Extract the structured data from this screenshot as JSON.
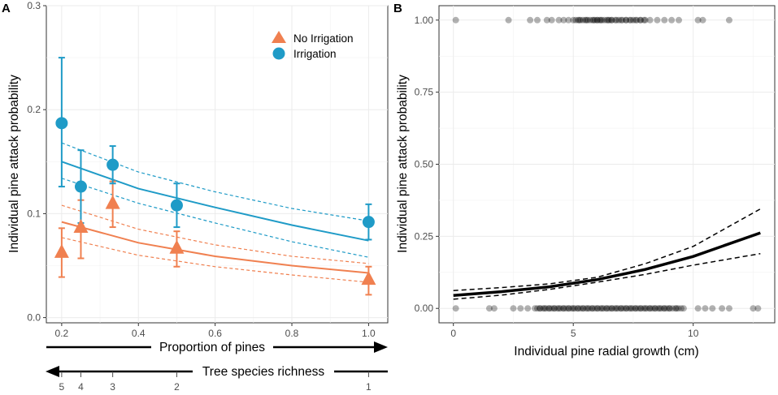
{
  "chart_data": [
    {
      "panel": "A",
      "type": "scatter",
      "ylabel": "Individual pine attack probability",
      "ylim": [
        -0.005,
        0.3
      ],
      "xlim": [
        0.16,
        1.05
      ],
      "x_ticks": [
        0.2,
        0.4,
        0.6,
        0.8,
        1.0
      ],
      "x_tick_labels": [
        "0.2",
        "0.4",
        "0.6",
        "0.8",
        "1.0"
      ],
      "y_ticks": [
        0.0,
        0.1,
        0.2,
        0.3
      ],
      "y_tick_labels": [
        "0.0",
        "0.1",
        "0.2",
        "0.3"
      ],
      "grid": true,
      "legend_position": "top-right",
      "legend": [
        {
          "name": "No Irrigation",
          "marker": "triangle",
          "color": "#f08050"
        },
        {
          "name": "Irrigation",
          "marker": "circle",
          "color": "#1f9bc7"
        }
      ],
      "series": [
        {
          "name": "No Irrigation",
          "color": "#f08050",
          "points": [
            {
              "x": 0.2,
              "y": 0.063,
              "lo": 0.039,
              "hi": 0.086
            },
            {
              "x": 0.25,
              "y": 0.087,
              "lo": 0.057,
              "hi": 0.113
            },
            {
              "x": 0.333,
              "y": 0.11,
              "lo": 0.087,
              "hi": 0.131
            },
            {
              "x": 0.5,
              "y": 0.067,
              "lo": 0.049,
              "hi": 0.083
            },
            {
              "x": 1.0,
              "y": 0.037,
              "lo": 0.022,
              "hi": 0.049
            }
          ],
          "fit": {
            "x": [
              0.2,
              0.4,
              0.6,
              0.8,
              1.0
            ],
            "y": [
              0.092,
              0.072,
              0.059,
              0.05,
              0.043
            ]
          },
          "ci_upper": {
            "x": [
              0.2,
              0.4,
              0.6,
              0.8,
              1.0
            ],
            "y": [
              0.108,
              0.085,
              0.07,
              0.059,
              0.052
            ]
          },
          "ci_lower": {
            "x": [
              0.2,
              0.4,
              0.6,
              0.8,
              1.0
            ],
            "y": [
              0.077,
              0.06,
              0.049,
              0.041,
              0.034
            ]
          }
        },
        {
          "name": "Irrigation",
          "color": "#1f9bc7",
          "points": [
            {
              "x": 0.2,
              "y": 0.187,
              "lo": 0.126,
              "hi": 0.25
            },
            {
              "x": 0.25,
              "y": 0.126,
              "lo": 0.091,
              "hi": 0.161
            },
            {
              "x": 0.333,
              "y": 0.147,
              "lo": 0.129,
              "hi": 0.165
            },
            {
              "x": 0.5,
              "y": 0.108,
              "lo": 0.087,
              "hi": 0.129
            },
            {
              "x": 1.0,
              "y": 0.092,
              "lo": 0.075,
              "hi": 0.109
            }
          ],
          "fit": {
            "x": [
              0.2,
              0.4,
              0.6,
              0.8,
              1.0
            ],
            "y": [
              0.15,
              0.124,
              0.106,
              0.089,
              0.074
            ]
          },
          "ci_upper": {
            "x": [
              0.2,
              0.4,
              0.6,
              0.8,
              1.0
            ],
            "y": [
              0.168,
              0.14,
              0.121,
              0.105,
              0.093
            ]
          },
          "ci_lower": {
            "x": [
              0.2,
              0.4,
              0.6,
              0.8,
              1.0
            ],
            "y": [
              0.134,
              0.11,
              0.091,
              0.073,
              0.058
            ]
          }
        }
      ],
      "arrow_axis_1": {
        "label": "Proportion of pines",
        "direction": "right"
      },
      "arrow_axis_2": {
        "label": "Tree species richness",
        "direction": "left",
        "ticks": [
          {
            "x": 0.2,
            "label": "5"
          },
          {
            "x": 0.25,
            "label": "4"
          },
          {
            "x": 0.333,
            "label": "3"
          },
          {
            "x": 0.5,
            "label": "2"
          },
          {
            "x": 1.0,
            "label": "1"
          }
        ]
      }
    },
    {
      "panel": "B",
      "type": "scatter",
      "xlabel": "Individual pine radial growth (cm)",
      "ylabel": "Individual pine attack probability",
      "xlim": [
        -0.6,
        13.4
      ],
      "ylim": [
        -0.05,
        1.05
      ],
      "x_ticks": [
        0,
        5,
        10
      ],
      "x_tick_labels": [
        "0",
        "5",
        "10"
      ],
      "y_ticks": [
        0.0,
        0.25,
        0.5,
        0.75,
        1.0
      ],
      "y_tick_labels": [
        "0.00",
        "0.25",
        "0.50",
        "0.75",
        "1.00"
      ],
      "grid": true,
      "points_y1_x": [
        0.1,
        2.3,
        3.2,
        3.5,
        3.9,
        4.1,
        4.4,
        4.6,
        4.8,
        5.0,
        5.2,
        5.3,
        5.5,
        5.6,
        5.8,
        5.9,
        6.0,
        6.1,
        6.2,
        6.4,
        6.5,
        6.6,
        6.8,
        7.0,
        7.2,
        7.4,
        7.6,
        7.8,
        8.0,
        8.2,
        8.5,
        8.8,
        9.1,
        9.4,
        10.2,
        10.4,
        11.5
      ],
      "points_y0_x": [
        0.1,
        1.5,
        1.7,
        2.5,
        2.8,
        3.1,
        3.4,
        3.6,
        3.8,
        4.0,
        4.2,
        4.4,
        4.6,
        4.8,
        5.0,
        5.2,
        5.4,
        5.6,
        5.8,
        6.0,
        6.2,
        6.4,
        6.6,
        6.8,
        7.0,
        7.2,
        7.4,
        7.6,
        7.8,
        8.0,
        8.2,
        8.4,
        8.6,
        8.8,
        9.0,
        9.3,
        9.6,
        10.2,
        10.5,
        10.8,
        11.2,
        11.5,
        12.5,
        12.7
      ],
      "fit": {
        "x": [
          0,
          2,
          4,
          6,
          8,
          10,
          12.8
        ],
        "y": [
          0.045,
          0.058,
          0.075,
          0.1,
          0.135,
          0.18,
          0.262
        ]
      },
      "ci_upper": {
        "x": [
          0,
          2,
          4,
          6,
          8,
          10,
          12.8
        ],
        "y": [
          0.062,
          0.072,
          0.085,
          0.108,
          0.155,
          0.215,
          0.345
        ]
      },
      "ci_lower": {
        "x": [
          0,
          2,
          4,
          6,
          8,
          10,
          12.8
        ],
        "y": [
          0.032,
          0.046,
          0.066,
          0.091,
          0.118,
          0.15,
          0.19
        ]
      }
    }
  ]
}
